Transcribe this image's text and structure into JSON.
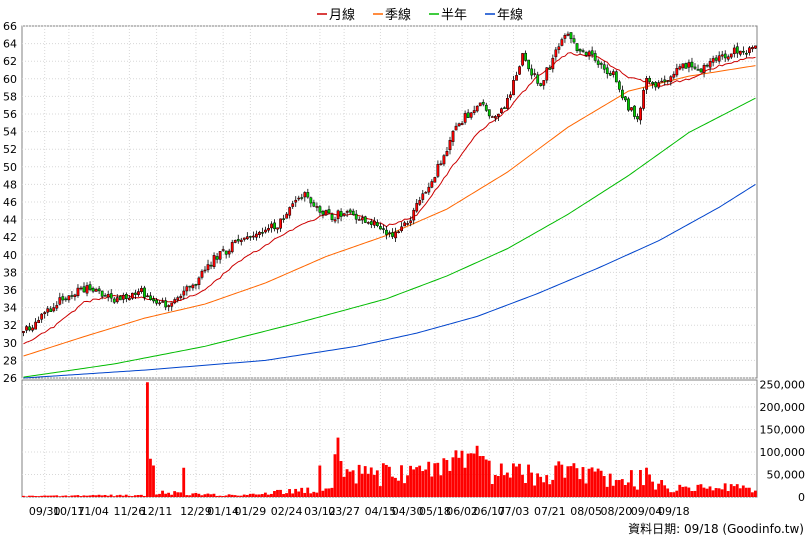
{
  "chart_data": {
    "type": "candlestick",
    "legend": [
      {
        "label": "月線",
        "color": "#cc0000"
      },
      {
        "label": "季線",
        "color": "#ff6600"
      },
      {
        "label": "半年",
        "color": "#00bb00"
      },
      {
        "label": "年線",
        "color": "#0044cc"
      }
    ],
    "legend_position": "top-center",
    "price_axis": {
      "min": 26,
      "max": 66,
      "ticks": [
        26,
        28,
        30,
        32,
        34,
        36,
        38,
        40,
        42,
        44,
        46,
        48,
        50,
        52,
        54,
        56,
        58,
        60,
        62,
        64,
        66
      ],
      "position": "left"
    },
    "volume_axis": {
      "min": 0,
      "max": 250000,
      "ticks": [
        "0",
        "50,000",
        "100,000",
        "150,000",
        "200,000",
        "250,000"
      ],
      "position": "right"
    },
    "x_tick_labels": [
      "09/30",
      "10/17",
      "11/04",
      "11/26",
      "12/11",
      "12/29",
      "01/14",
      "01/29",
      "02/24",
      "03/12",
      "03/27",
      "04/15",
      "04/30",
      "05/18",
      "06/02",
      "06/17",
      "07/03",
      "07/21",
      "08/05",
      "08/20",
      "09/04",
      "09/18"
    ],
    "grid": true,
    "footnote": "資料日期: 09/18 (Goodinfo.tw)",
    "anchors": {
      "price": [
        [
          0,
          31.2
        ],
        [
          3,
          32
        ],
        [
          6,
          33
        ],
        [
          9,
          33.8
        ],
        [
          12,
          34.8
        ],
        [
          15,
          35.5
        ],
        [
          18,
          35.8
        ],
        [
          21,
          36.2
        ],
        [
          24,
          35.8
        ],
        [
          27,
          35.4
        ],
        [
          30,
          35
        ],
        [
          33,
          35
        ],
        [
          36,
          35.3
        ],
        [
          39,
          35.8
        ],
        [
          42,
          35.2
        ],
        [
          45,
          34.5
        ],
        [
          48,
          34.2
        ],
        [
          51,
          35
        ],
        [
          54,
          36
        ],
        [
          57,
          36.8
        ],
        [
          60,
          38.2
        ],
        [
          63,
          39.5
        ],
        [
          66,
          40.2
        ],
        [
          69,
          41
        ],
        [
          72,
          41.6
        ],
        [
          75,
          42.2
        ],
        [
          78,
          42.8
        ],
        [
          81,
          43.2
        ],
        [
          84,
          43.5
        ],
        [
          87,
          44.5
        ],
        [
          90,
          46.5
        ],
        [
          93,
          46.8
        ],
        [
          96,
          45.5
        ],
        [
          99,
          44.8
        ],
        [
          102,
          44.2
        ],
        [
          105,
          44.8
        ],
        [
          108,
          44.5
        ],
        [
          111,
          44.2
        ],
        [
          114,
          43.8
        ],
        [
          117,
          43.2
        ],
        [
          120,
          42.5
        ],
        [
          123,
          42.2
        ],
        [
          126,
          43.2
        ],
        [
          129,
          44.8
        ],
        [
          132,
          46.8
        ],
        [
          135,
          48.5
        ],
        [
          138,
          50.5
        ],
        [
          141,
          53
        ],
        [
          144,
          55
        ],
        [
          147,
          56
        ],
        [
          150,
          57
        ],
        [
          153,
          56.5
        ],
        [
          156,
          55.5
        ],
        [
          159,
          56.8
        ],
        [
          162,
          59.5
        ],
        [
          165,
          62.5
        ],
        [
          168,
          60.5
        ],
        [
          171,
          59.5
        ],
        [
          174,
          61.5
        ],
        [
          177,
          64
        ],
        [
          180,
          65.5
        ],
        [
          183,
          63.5
        ],
        [
          186,
          63
        ],
        [
          189,
          62.5
        ],
        [
          192,
          61
        ],
        [
          195,
          60.5
        ],
        [
          198,
          57.5
        ],
        [
          201,
          56.5
        ],
        [
          203,
          55
        ],
        [
          206,
          60
        ],
        [
          209,
          59.5
        ],
        [
          212,
          59.8
        ],
        [
          215,
          60.5
        ],
        [
          218,
          61.5
        ],
        [
          221,
          61.5
        ],
        [
          224,
          61
        ],
        [
          227,
          62
        ],
        [
          230,
          62.5
        ],
        [
          233,
          62.8
        ],
        [
          236,
          63.2
        ],
        [
          239,
          63.3
        ],
        [
          242,
          63.5
        ]
      ],
      "ma20": [
        [
          0,
          29.8
        ],
        [
          10,
          31.8
        ],
        [
          20,
          34.6
        ],
        [
          30,
          35.4
        ],
        [
          40,
          35.1
        ],
        [
          50,
          34.6
        ],
        [
          60,
          36
        ],
        [
          70,
          38.9
        ],
        [
          80,
          41.1
        ],
        [
          90,
          43.1
        ],
        [
          100,
          44.6
        ],
        [
          110,
          44.5
        ],
        [
          120,
          43.3
        ],
        [
          130,
          44.4
        ],
        [
          140,
          49.2
        ],
        [
          150,
          53.8
        ],
        [
          160,
          56.5
        ],
        [
          170,
          60.3
        ],
        [
          180,
          62.9
        ],
        [
          190,
          62.5
        ],
        [
          200,
          60.2
        ],
        [
          210,
          59.2
        ],
        [
          220,
          60
        ],
        [
          230,
          61.5
        ],
        [
          242,
          62.5
        ]
      ],
      "ma60": [
        [
          0,
          28.5
        ],
        [
          20,
          30.7
        ],
        [
          40,
          32.8
        ],
        [
          60,
          34.4
        ],
        [
          80,
          36.8
        ],
        [
          100,
          39.8
        ],
        [
          120,
          42.2
        ],
        [
          140,
          45.2
        ],
        [
          160,
          49.4
        ],
        [
          180,
          54.5
        ],
        [
          200,
          58.6
        ],
        [
          220,
          60.3
        ],
        [
          242,
          61.5
        ]
      ],
      "ma120": [
        [
          0,
          26.1
        ],
        [
          30,
          27.6
        ],
        [
          60,
          29.6
        ],
        [
          90,
          32.2
        ],
        [
          120,
          35
        ],
        [
          140,
          37.6
        ],
        [
          160,
          40.7
        ],
        [
          180,
          44.6
        ],
        [
          200,
          49
        ],
        [
          220,
          53.9
        ],
        [
          242,
          57.8
        ]
      ],
      "ma240": [
        [
          0,
          26
        ],
        [
          40,
          26.9
        ],
        [
          80,
          28
        ],
        [
          110,
          29.6
        ],
        [
          130,
          31.1
        ],
        [
          150,
          33
        ],
        [
          170,
          35.6
        ],
        [
          190,
          38.5
        ],
        [
          210,
          41.6
        ],
        [
          230,
          45.4
        ],
        [
          242,
          48
        ]
      ],
      "volume": [
        [
          0,
          2000
        ],
        [
          20,
          3000
        ],
        [
          40,
          4000
        ],
        [
          41,
          12000
        ],
        [
          60,
          5000
        ],
        [
          74,
          4000
        ],
        [
          75,
          6000
        ],
        [
          80,
          8000
        ],
        [
          85,
          12000
        ],
        [
          95,
          15000
        ],
        [
          100,
          20000
        ],
        [
          110,
          55000
        ],
        [
          130,
          45000
        ],
        [
          140,
          62000
        ],
        [
          150,
          80000
        ],
        [
          160,
          48000
        ],
        [
          180,
          52000
        ],
        [
          200,
          40000
        ],
        [
          210,
          27000
        ],
        [
          220,
          18000
        ],
        [
          230,
          20000
        ],
        [
          242,
          20000
        ]
      ],
      "volume_spikes": [
        [
          41,
          255000
        ],
        [
          42,
          85000
        ],
        [
          43,
          70000
        ],
        [
          53,
          65000
        ],
        [
          98,
          70000
        ],
        [
          103,
          95000
        ],
        [
          104,
          132000
        ],
        [
          105,
          80000
        ],
        [
          119,
          75000
        ],
        [
          136,
          75000
        ],
        [
          146,
          65000
        ],
        [
          167,
          72000
        ],
        [
          176,
          70000
        ],
        [
          204,
          60000
        ],
        [
          206,
          65000
        ],
        [
          207,
          50000
        ]
      ],
      "x_tick_index": [
        7,
        15,
        23,
        35,
        44,
        57,
        66,
        75,
        87,
        98,
        106,
        118,
        127,
        136,
        145,
        154,
        162,
        174,
        186,
        196,
        206,
        215
      ]
    },
    "n_bars": 243
  }
}
